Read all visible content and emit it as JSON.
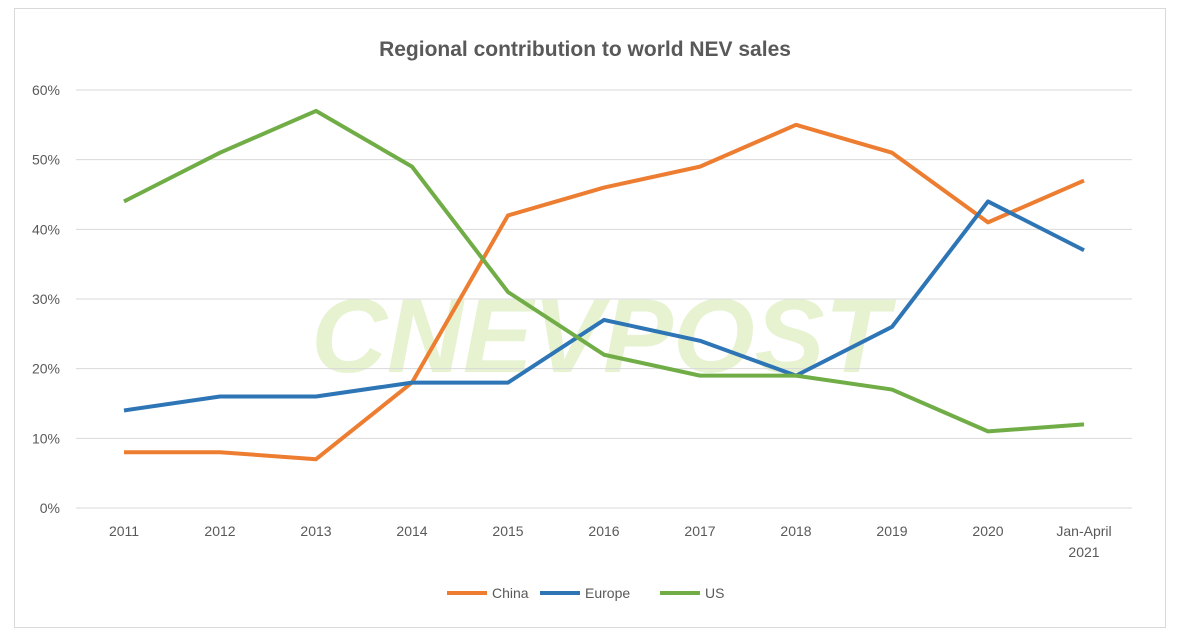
{
  "chart_data": {
    "type": "line",
    "title": "Regional contribution to world NEV sales",
    "xlabel": "",
    "ylabel": "",
    "categories": [
      "2011",
      "2012",
      "2013",
      "2014",
      "2015",
      "2016",
      "2017",
      "2018",
      "2019",
      "2020",
      "Jan-April 2021"
    ],
    "ylim": [
      0,
      60
    ],
    "yticks": [
      "0%",
      "10%",
      "20%",
      "30%",
      "40%",
      "50%",
      "60%"
    ],
    "grid": true,
    "legend_position": "bottom",
    "series": [
      {
        "name": "China",
        "color": "#ed7d31",
        "values": [
          8,
          8,
          7,
          18,
          42,
          46,
          49,
          55,
          51,
          41,
          47
        ]
      },
      {
        "name": "Europe",
        "color": "#2e75b6",
        "values": [
          14,
          16,
          16,
          18,
          18,
          27,
          24,
          19,
          26,
          44,
          37
        ]
      },
      {
        "name": "US",
        "color": "#70ad47",
        "values": [
          44,
          51,
          57,
          49,
          31,
          22,
          19,
          19,
          17,
          11,
          12
        ]
      }
    ],
    "watermark": "CNEVPOST"
  }
}
